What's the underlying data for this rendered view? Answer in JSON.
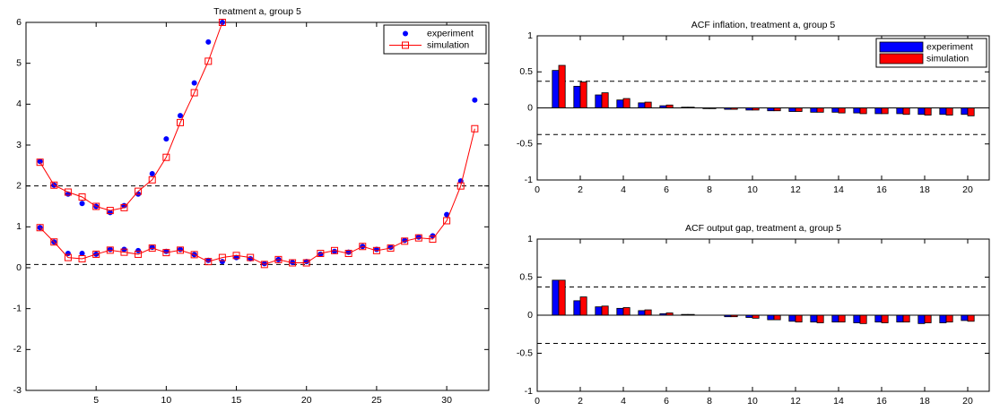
{
  "chart_data": [
    {
      "type": "line",
      "title": "Treatment a, group 5",
      "x": [
        1,
        2,
        3,
        4,
        5,
        6,
        7,
        8,
        9,
        10,
        11,
        12,
        13,
        14,
        15,
        16,
        17,
        18,
        19,
        20,
        21,
        22,
        23,
        24,
        25,
        26,
        27,
        28,
        29,
        30,
        31,
        32
      ],
      "xlim": [
        0,
        33
      ],
      "xticks": [
        5,
        10,
        15,
        20,
        25,
        30
      ],
      "ylim": [
        -3,
        6
      ],
      "yticks": [
        -3,
        -2,
        -1,
        0,
        1,
        2,
        3,
        4,
        5,
        6
      ],
      "hlines": [
        2,
        0.08
      ],
      "legend": "upper right",
      "series": [
        {
          "name": "experiment",
          "color": "#0000ff",
          "marker": "dot",
          "line": false,
          "values": [
            2.6,
            2.02,
            1.8,
            1.57,
            1.5,
            1.35,
            1.52,
            1.8,
            2.3,
            3.15,
            3.72,
            4.52,
            5.52,
            6.0,
            null,
            null,
            null,
            null,
            null,
            null,
            null,
            null,
            null,
            null,
            null,
            null,
            null,
            null,
            null,
            null,
            null,
            null
          ]
        },
        {
          "name": "simulation",
          "color": "#ff0000",
          "marker": "square",
          "line": true,
          "values": [
            2.58,
            2.02,
            1.85,
            1.73,
            1.5,
            1.4,
            1.47,
            1.87,
            2.15,
            2.7,
            3.55,
            4.28,
            5.05,
            6.0,
            null,
            null,
            null,
            null,
            null,
            null,
            null,
            null,
            null,
            null,
            null,
            null,
            null,
            null,
            null,
            null,
            null,
            null
          ]
        },
        {
          "color": "#0000ff",
          "marker": "dot",
          "line": false,
          "values": [
            0.98,
            0.63,
            0.35,
            0.35,
            0.33,
            0.45,
            0.45,
            0.42,
            0.5,
            0.4,
            0.45,
            0.32,
            0.18,
            0.15,
            0.25,
            0.22,
            0.1,
            0.2,
            0.13,
            0.15,
            0.33,
            0.4,
            0.38,
            0.52,
            0.45,
            0.5,
            0.67,
            0.75,
            0.78,
            1.3,
            2.12,
            4.1
          ]
        },
        {
          "color": "#ff0000",
          "marker": "square",
          "line": true,
          "values": [
            0.98,
            0.63,
            0.25,
            0.22,
            0.33,
            0.43,
            0.38,
            0.33,
            0.48,
            0.37,
            0.43,
            0.32,
            0.15,
            0.25,
            0.3,
            0.25,
            0.08,
            0.2,
            0.12,
            0.12,
            0.35,
            0.42,
            0.35,
            0.52,
            0.42,
            0.48,
            0.65,
            0.73,
            0.7,
            1.15,
            2.0,
            3.4
          ]
        }
      ]
    },
    {
      "type": "bar",
      "title": "ACF inflation, treatment a, group 5",
      "x": [
        1,
        2,
        3,
        4,
        5,
        6,
        7,
        8,
        9,
        10,
        11,
        12,
        13,
        14,
        15,
        16,
        17,
        18,
        19,
        20
      ],
      "xlim": [
        0,
        21
      ],
      "xticks": [
        0,
        2,
        4,
        6,
        8,
        10,
        12,
        14,
        16,
        18,
        20
      ],
      "ylim": [
        -1,
        1
      ],
      "yticks": [
        -1,
        -0.5,
        0,
        0.5,
        1
      ],
      "hlines": [
        0.37,
        -0.37
      ],
      "legend": "upper right",
      "series": [
        {
          "name": "experiment",
          "color": "#0000ff",
          "values": [
            0.52,
            0.3,
            0.18,
            0.11,
            0.07,
            0.03,
            0.01,
            -0.01,
            -0.02,
            -0.03,
            -0.04,
            -0.05,
            -0.06,
            -0.06,
            -0.07,
            -0.08,
            -0.08,
            -0.09,
            -0.09,
            -0.09
          ]
        },
        {
          "name": "simulation",
          "color": "#ff0000",
          "values": [
            0.59,
            0.36,
            0.21,
            0.13,
            0.08,
            0.04,
            0.01,
            -0.01,
            -0.02,
            -0.03,
            -0.04,
            -0.05,
            -0.06,
            -0.07,
            -0.08,
            -0.08,
            -0.09,
            -0.1,
            -0.1,
            -0.11
          ]
        }
      ]
    },
    {
      "type": "bar",
      "title": "ACF output gap, treatment a, group 5",
      "x": [
        1,
        2,
        3,
        4,
        5,
        6,
        7,
        8,
        9,
        10,
        11,
        12,
        13,
        14,
        15,
        16,
        17,
        18,
        19,
        20
      ],
      "xlim": [
        0,
        21
      ],
      "xticks": [
        0,
        2,
        4,
        6,
        8,
        10,
        12,
        14,
        16,
        18,
        20
      ],
      "ylim": [
        -1,
        1
      ],
      "yticks": [
        -1,
        -0.5,
        0,
        0.5,
        1
      ],
      "hlines": [
        0.37,
        -0.37
      ],
      "series": [
        {
          "name": "experiment",
          "color": "#0000ff",
          "values": [
            0.46,
            0.19,
            0.11,
            0.09,
            0.06,
            0.02,
            0.01,
            0.0,
            -0.02,
            -0.03,
            -0.06,
            -0.08,
            -0.09,
            -0.09,
            -0.1,
            -0.09,
            -0.09,
            -0.11,
            -0.1,
            -0.07
          ]
        },
        {
          "name": "simulation",
          "color": "#ff0000",
          "values": [
            0.46,
            0.24,
            0.12,
            0.1,
            0.07,
            0.03,
            0.01,
            0.0,
            -0.02,
            -0.04,
            -0.06,
            -0.09,
            -0.1,
            -0.09,
            -0.11,
            -0.1,
            -0.09,
            -0.1,
            -0.09,
            -0.08
          ]
        }
      ]
    }
  ]
}
